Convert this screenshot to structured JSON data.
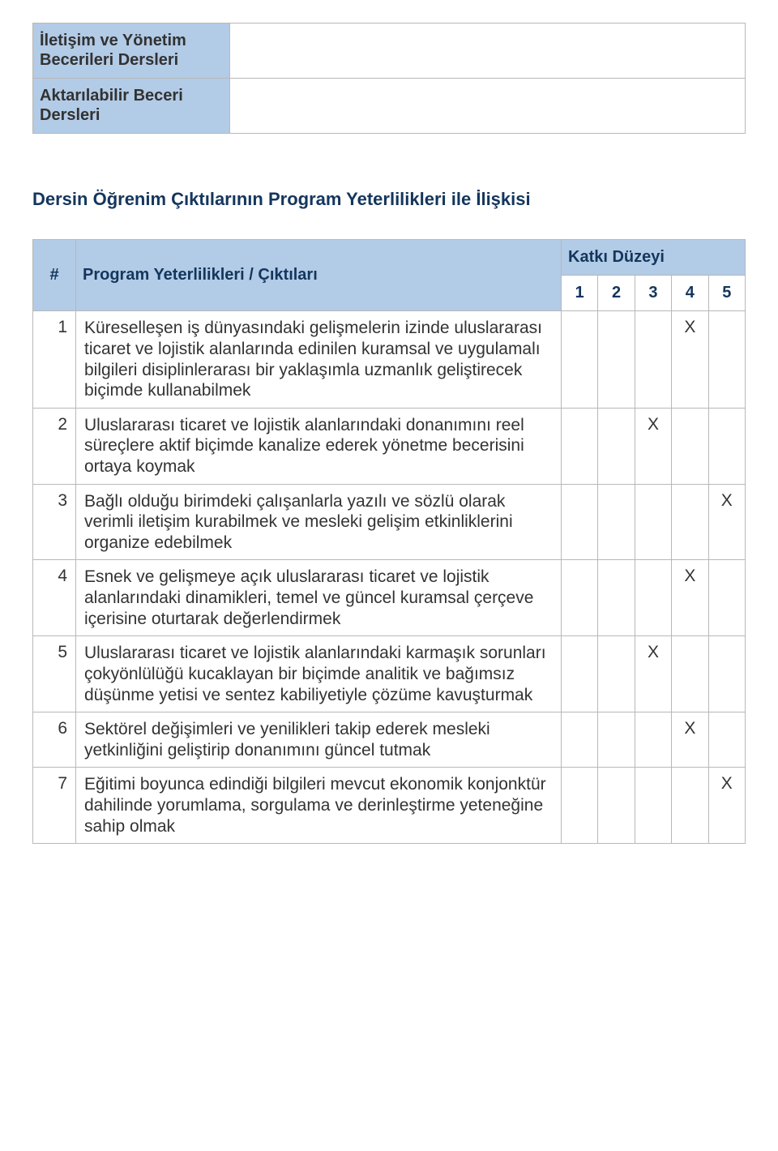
{
  "top_rows": [
    {
      "label": "İletişim ve Yönetim Becerileri Dersleri",
      "value": ""
    },
    {
      "label": "Aktarılabilir Beceri Dersleri",
      "value": ""
    }
  ],
  "section_heading": "Dersin Öğrenim Çıktılarının Program Yeterlilikleri ile İlişkisi",
  "matrix": {
    "header_num": "#",
    "header_desc": "Program Yeterlilikleri / Çıktıları",
    "header_level": "Katkı Düzeyi",
    "sub_headers": [
      "1",
      "2",
      "3",
      "4",
      "5"
    ],
    "mark_glyph": "X",
    "rows": [
      {
        "num": "1",
        "desc": "Küreselleşen iş dünyasındaki gelişmelerin izinde uluslararası ticaret ve lojistik alanlarında edinilen kuramsal ve uygulamalı bilgileri disiplinlerarası bir yaklaşımla uzmanlık geliştirecek biçimde kullanabilmek",
        "marks": [
          "",
          "",
          "",
          "X",
          ""
        ]
      },
      {
        "num": "2",
        "desc": "Uluslararası ticaret ve lojistik alanlarındaki donanımını reel süreçlere aktif biçimde kanalize ederek yönetme becerisini ortaya koymak",
        "marks": [
          "",
          "",
          "X",
          "",
          ""
        ]
      },
      {
        "num": "3",
        "desc": "Bağlı olduğu birimdeki çalışanlarla yazılı ve sözlü olarak verimli iletişim kurabilmek ve mesleki gelişim etkinliklerini organize edebilmek",
        "marks": [
          "",
          "",
          "",
          "",
          "X"
        ]
      },
      {
        "num": "4",
        "desc": "Esnek ve gelişmeye açık uluslararası ticaret ve lojistik alanlarındaki dinamikleri, temel ve güncel kuramsal çerçeve içerisine oturtarak değerlendirmek",
        "marks": [
          "",
          "",
          "",
          "X",
          ""
        ]
      },
      {
        "num": "5",
        "desc": "Uluslararası ticaret ve lojistik alanlarındaki karmaşık sorunları çokyönlülüğü kucaklayan bir biçimde analitik ve bağımsız düşünme yetisi ve sentez kabiliyetiyle çözüme kavuşturmak",
        "marks": [
          "",
          "",
          "X",
          "",
          ""
        ]
      },
      {
        "num": "6",
        "desc": "Sektörel değişimleri ve yenilikleri takip ederek mesleki yetkinliğini geliştirip donanımını güncel tutmak",
        "marks": [
          "",
          "",
          "",
          "X",
          ""
        ]
      },
      {
        "num": "7",
        "desc": "Eğitimi boyunca edindiği bilgileri mevcut ekonomik konjonktür dahilinde yorumlama, sorgulama ve derinleştirme yeteneğine sahip olmak",
        "marks": [
          "",
          "",
          "",
          "",
          "X"
        ]
      }
    ]
  }
}
